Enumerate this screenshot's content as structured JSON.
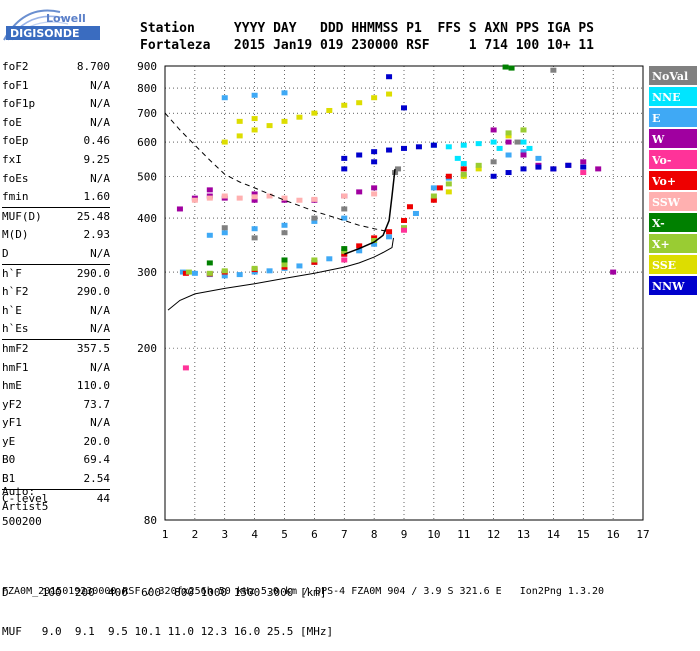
{
  "logo": {
    "line1": "Lowell",
    "line2": "DIGISONDE"
  },
  "header": {
    "labels": [
      "Station",
      "YYYY",
      "DAY",
      "DDD",
      "HHMMSS",
      "P1",
      "FFS",
      "S",
      "AXN",
      "PPS",
      "IGA",
      "PS"
    ],
    "values": [
      "Fortaleza",
      "2015",
      "Jan19",
      "019",
      "230000",
      "RSF",
      "",
      "1",
      "714",
      "100",
      "10+",
      "11"
    ]
  },
  "params": [
    {
      "name": "foF2",
      "value": "8.700"
    },
    {
      "name": "foF1",
      "value": "N/A"
    },
    {
      "name": "foF1p",
      "value": "N/A"
    },
    {
      "name": "foE",
      "value": "N/A"
    },
    {
      "name": "foEp",
      "value": "0.46"
    },
    {
      "name": "fxI",
      "value": "9.25"
    },
    {
      "name": "foEs",
      "value": "N/A"
    },
    {
      "name": "fmin",
      "value": "1.60"
    },
    {
      "sep": true
    },
    {
      "name": "MUF(D)",
      "value": "25.48"
    },
    {
      "name": "M(D)",
      "value": "2.93"
    },
    {
      "name": "D",
      "value": "N/A"
    },
    {
      "sep": true
    },
    {
      "name": "h`F",
      "value": "290.0"
    },
    {
      "name": "h`F2",
      "value": "290.0"
    },
    {
      "name": "h`E",
      "value": "N/A"
    },
    {
      "name": "h`Es",
      "value": "N/A"
    },
    {
      "sep": true
    },
    {
      "name": "hmF2",
      "value": "357.5"
    },
    {
      "name": "hmF1",
      "value": "N/A"
    },
    {
      "name": "hmE",
      "value": "110.0"
    },
    {
      "name": "yF2",
      "value": "73.7"
    },
    {
      "name": "yF1",
      "value": "N/A"
    },
    {
      "name": "yE",
      "value": "20.0"
    },
    {
      "name": "B0",
      "value": "69.4"
    },
    {
      "name": "B1",
      "value": "2.54"
    },
    {
      "sep": true
    },
    {
      "name": "C-level",
      "value": "44"
    }
  ],
  "auto": [
    "Auto:",
    "Artist5",
    "500200"
  ],
  "footer": {
    "d_row": "D     100  200  400  600  800 1000 1500 3000 [km]",
    "muf_row": "MUF   9.0  9.1  9.5 10.1 11.0 12.3 16.0 25.5 [MHz]",
    "file_line": "FZA0M_2015019230000.RSF / 320fx256h 50 kHz 5.0 km / DPS-4 FZA0M 904 / 3.9 S 321.6 E   Ion2Png 1.3.20"
  },
  "legend": [
    {
      "label": "NoVal",
      "color": "#808080"
    },
    {
      "label": "NNE",
      "color": "#00e5ff"
    },
    {
      "label": "E",
      "color": "#3fa9f5"
    },
    {
      "label": "W",
      "color": "#a000a0"
    },
    {
      "label": "Vo-",
      "color": "#ff3399"
    },
    {
      "label": "Vo+",
      "color": "#ee0000"
    },
    {
      "label": "SSW",
      "color": "#ffb0b0"
    },
    {
      "label": "X-",
      "color": "#008000"
    },
    {
      "label": "X+",
      "color": "#99cc33"
    },
    {
      "label": "SSE",
      "color": "#dddd00"
    },
    {
      "label": "NNW",
      "color": "#0000cc"
    }
  ],
  "chart_data": {
    "type": "scatter",
    "xlim": [
      1,
      17
    ],
    "ylim": [
      80,
      900
    ],
    "y_scale": "log",
    "x_ticks": [
      1,
      2,
      3,
      4,
      5,
      6,
      7,
      8,
      9,
      10,
      11,
      12,
      13,
      14,
      15,
      16,
      17
    ],
    "y_ticks": [
      80,
      200,
      300,
      400,
      500,
      600,
      700,
      800,
      900
    ],
    "grid": true,
    "series": [
      {
        "name": "E",
        "color": "#3fa9f5",
        "points": [
          [
            1.6,
            300
          ],
          [
            2,
            298
          ],
          [
            2.5,
            296
          ],
          [
            3,
            294
          ],
          [
            3.5,
            296
          ],
          [
            4,
            300
          ],
          [
            4.5,
            302
          ],
          [
            5,
            306
          ],
          [
            5.5,
            310
          ],
          [
            6,
            316
          ],
          [
            6.5,
            322
          ],
          [
            7,
            330
          ],
          [
            7.5,
            336
          ],
          [
            8,
            348
          ],
          [
            8.5,
            362
          ],
          [
            9,
            380
          ],
          [
            9.4,
            410
          ],
          [
            10,
            470
          ],
          [
            10.5,
            495
          ],
          [
            11,
            520
          ],
          [
            2.5,
            365
          ],
          [
            3,
            370
          ],
          [
            4,
            378
          ],
          [
            5,
            385
          ],
          [
            6,
            393
          ],
          [
            7,
            400
          ],
          [
            3,
            760
          ],
          [
            4,
            770
          ],
          [
            5,
            780
          ],
          [
            12.5,
            560
          ],
          [
            13,
            570
          ],
          [
            13.5,
            550
          ]
        ]
      },
      {
        "name": "Vo+",
        "color": "#ee0000",
        "points": [
          [
            1.7,
            298
          ],
          [
            2.5,
            297
          ],
          [
            3,
            300
          ],
          [
            4,
            304
          ],
          [
            5,
            308
          ],
          [
            6,
            316
          ],
          [
            7,
            330
          ],
          [
            7.5,
            345
          ],
          [
            8,
            360
          ],
          [
            8.5,
            372
          ],
          [
            9,
            395
          ],
          [
            9.2,
            425
          ],
          [
            10,
            440
          ],
          [
            10.2,
            470
          ],
          [
            10.5,
            500
          ],
          [
            11,
            520
          ]
        ]
      },
      {
        "name": "NNE",
        "color": "#00e5ff",
        "points": [
          [
            10,
            590
          ],
          [
            10.5,
            585
          ],
          [
            11,
            590
          ],
          [
            11.5,
            595
          ],
          [
            12,
            600
          ],
          [
            12.2,
            580
          ],
          [
            13,
            600
          ],
          [
            13.2,
            580
          ],
          [
            11,
            535
          ],
          [
            10.8,
            550
          ]
        ]
      },
      {
        "name": "W",
        "color": "#a000a0",
        "points": [
          [
            1.5,
            420
          ],
          [
            2,
            445
          ],
          [
            2.5,
            450
          ],
          [
            3,
            445
          ],
          [
            4,
            440
          ],
          [
            5,
            440
          ],
          [
            6,
            440
          ],
          [
            7,
            450
          ],
          [
            7.5,
            460
          ],
          [
            8,
            470
          ],
          [
            2.5,
            465
          ],
          [
            4,
            455
          ],
          [
            12,
            640
          ],
          [
            12.5,
            600
          ],
          [
            13,
            560
          ],
          [
            13.5,
            530
          ],
          [
            14,
            520
          ],
          [
            14.5,
            530
          ],
          [
            15,
            540
          ],
          [
            15.5,
            520
          ],
          [
            16,
            300
          ]
        ]
      },
      {
        "name": "SSW",
        "color": "#ffb0b0",
        "points": [
          [
            2,
            440
          ],
          [
            2.5,
            445
          ],
          [
            3,
            450
          ],
          [
            3.5,
            445
          ],
          [
            4,
            448
          ],
          [
            4.5,
            450
          ],
          [
            5,
            445
          ],
          [
            5.5,
            440
          ],
          [
            6,
            442
          ],
          [
            7,
            450
          ],
          [
            8,
            455
          ]
        ]
      },
      {
        "name": "NNW",
        "color": "#0000cc",
        "points": [
          [
            7,
            550
          ],
          [
            7.5,
            560
          ],
          [
            8,
            570
          ],
          [
            8.5,
            575
          ],
          [
            9,
            580
          ],
          [
            9.5,
            585
          ],
          [
            10,
            590
          ],
          [
            7,
            520
          ],
          [
            8,
            540
          ],
          [
            8.5,
            850
          ],
          [
            9,
            720
          ],
          [
            12,
            500
          ],
          [
            12.5,
            510
          ],
          [
            13,
            520
          ],
          [
            13.5,
            525
          ],
          [
            14,
            520
          ],
          [
            14.5,
            530
          ],
          [
            15,
            525
          ]
        ]
      },
      {
        "name": "SSE",
        "color": "#dddd00",
        "points": [
          [
            3,
            600
          ],
          [
            3.5,
            620
          ],
          [
            4,
            640
          ],
          [
            4.5,
            655
          ],
          [
            5,
            670
          ],
          [
            5.5,
            685
          ],
          [
            6,
            700
          ],
          [
            6.5,
            710
          ],
          [
            7,
            730
          ],
          [
            7.5,
            740
          ],
          [
            8,
            760
          ],
          [
            8.5,
            775
          ],
          [
            3.5,
            670
          ],
          [
            4,
            680
          ],
          [
            12.5,
            620
          ],
          [
            13,
            640
          ],
          [
            11,
            500
          ],
          [
            11.5,
            520
          ],
          [
            10.5,
            460
          ]
        ]
      },
      {
        "name": "X+",
        "color": "#99cc33",
        "points": [
          [
            1.8,
            300
          ],
          [
            2.5,
            298
          ],
          [
            3,
            302
          ],
          [
            4,
            306
          ],
          [
            5,
            312
          ],
          [
            6,
            320
          ],
          [
            7,
            335
          ],
          [
            8,
            355
          ],
          [
            9,
            380
          ],
          [
            10,
            450
          ],
          [
            10.5,
            480
          ],
          [
            11,
            505
          ],
          [
            11.5,
            530
          ],
          [
            12.5,
            630
          ],
          [
            13,
            640
          ]
        ]
      },
      {
        "name": "X-",
        "color": "#008000",
        "points": [
          [
            12.4,
            895
          ],
          [
            12.6,
            890
          ],
          [
            2.5,
            315
          ],
          [
            5,
            320
          ],
          [
            7,
            340
          ]
        ]
      },
      {
        "name": "NoVal",
        "color": "#808080",
        "points": [
          [
            3,
            380
          ],
          [
            4,
            360
          ],
          [
            5,
            370
          ],
          [
            6,
            400
          ],
          [
            7,
            420
          ],
          [
            8.7,
            510
          ],
          [
            8.8,
            520
          ],
          [
            12,
            540
          ],
          [
            14,
            880
          ],
          [
            12.8,
            600
          ]
        ]
      },
      {
        "name": "Vo-",
        "color": "#ff3399",
        "points": [
          [
            1.7,
            180
          ],
          [
            15,
            510
          ],
          [
            7,
            320
          ],
          [
            9,
            375
          ]
        ]
      }
    ],
    "traces": [
      {
        "style": "dashed",
        "points": [
          [
            1,
            700
          ],
          [
            1.5,
            640
          ],
          [
            2,
            590
          ],
          [
            2.5,
            545
          ],
          [
            3,
            505
          ],
          [
            3.5,
            485
          ],
          [
            4,
            470
          ],
          [
            5,
            440
          ],
          [
            6,
            415
          ],
          [
            7,
            395
          ],
          [
            7.5,
            385
          ],
          [
            8,
            378
          ],
          [
            8.5,
            372
          ]
        ]
      },
      {
        "style": "solid",
        "points": [
          [
            1.1,
            245
          ],
          [
            1.5,
            258
          ],
          [
            2,
            267
          ],
          [
            3,
            275
          ],
          [
            4,
            282
          ],
          [
            5,
            290
          ],
          [
            6,
            298
          ],
          [
            7,
            308
          ],
          [
            7.5,
            315
          ],
          [
            8,
            325
          ],
          [
            8.3,
            333
          ],
          [
            8.6,
            342
          ],
          [
            8.65,
            360
          ]
        ]
      },
      {
        "style": "solid-black",
        "points": [
          [
            7,
            330
          ],
          [
            7.5,
            340
          ],
          [
            8,
            352
          ],
          [
            8.3,
            365
          ],
          [
            8.5,
            395
          ],
          [
            8.6,
            450
          ],
          [
            8.7,
            520
          ]
        ]
      }
    ]
  }
}
